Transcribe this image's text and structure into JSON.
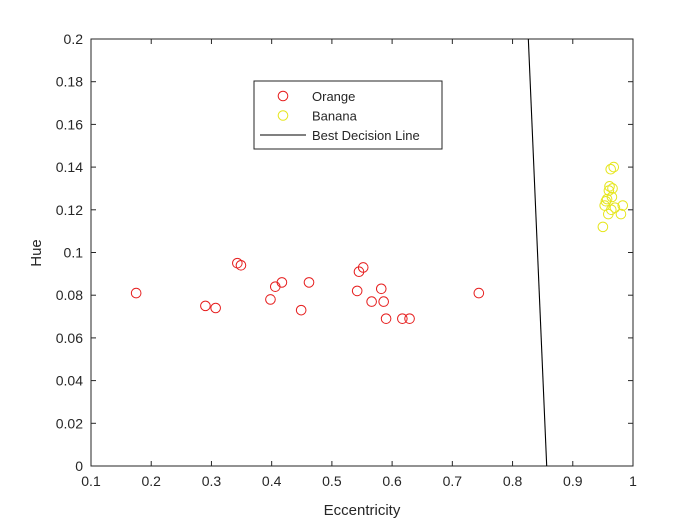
{
  "chart_data": {
    "type": "scatter",
    "xlabel": "Eccentricity",
    "ylabel": "Hue",
    "xlim": [
      0.1,
      1
    ],
    "ylim": [
      0,
      0.2
    ],
    "xticks": [
      "0.1",
      "0.2",
      "0.3",
      "0.4",
      "0.5",
      "0.6",
      "0.7",
      "0.8",
      "0.9",
      "1"
    ],
    "yticks": [
      "0",
      "0.02",
      "0.04",
      "0.06",
      "0.08",
      "0.1",
      "0.12",
      "0.14",
      "0.16",
      "0.18",
      "0.2"
    ],
    "grid": false,
    "legend_position": "top-center",
    "series": [
      {
        "name": "Orange",
        "kind": "scatter",
        "marker": "circle-open",
        "color": "#e61e1e",
        "points": [
          [
            0.175,
            0.081
          ],
          [
            0.29,
            0.075
          ],
          [
            0.307,
            0.074
          ],
          [
            0.343,
            0.095
          ],
          [
            0.349,
            0.094
          ],
          [
            0.398,
            0.078
          ],
          [
            0.406,
            0.084
          ],
          [
            0.417,
            0.086
          ],
          [
            0.449,
            0.073
          ],
          [
            0.462,
            0.086
          ],
          [
            0.542,
            0.082
          ],
          [
            0.545,
            0.091
          ],
          [
            0.552,
            0.093
          ],
          [
            0.566,
            0.077
          ],
          [
            0.582,
            0.083
          ],
          [
            0.586,
            0.077
          ],
          [
            0.59,
            0.069
          ],
          [
            0.617,
            0.069
          ],
          [
            0.629,
            0.069
          ],
          [
            0.744,
            0.081
          ]
        ]
      },
      {
        "name": "Banana",
        "kind": "scatter",
        "marker": "circle-open",
        "color": "#e6e61e",
        "points": [
          [
            0.95,
            0.112
          ],
          [
            0.953,
            0.122
          ],
          [
            0.955,
            0.124
          ],
          [
            0.957,
            0.125
          ],
          [
            0.959,
            0.118
          ],
          [
            0.96,
            0.129
          ],
          [
            0.961,
            0.131
          ],
          [
            0.963,
            0.139
          ],
          [
            0.964,
            0.12
          ],
          [
            0.965,
            0.126
          ],
          [
            0.966,
            0.13
          ],
          [
            0.968,
            0.14
          ],
          [
            0.97,
            0.121
          ],
          [
            0.98,
            0.118
          ],
          [
            0.983,
            0.122
          ]
        ]
      },
      {
        "name": "Best Decision Line",
        "kind": "line",
        "color": "#000000",
        "points": [
          [
            0.8262,
            0.2
          ],
          [
            0.8567,
            0
          ]
        ]
      }
    ]
  }
}
